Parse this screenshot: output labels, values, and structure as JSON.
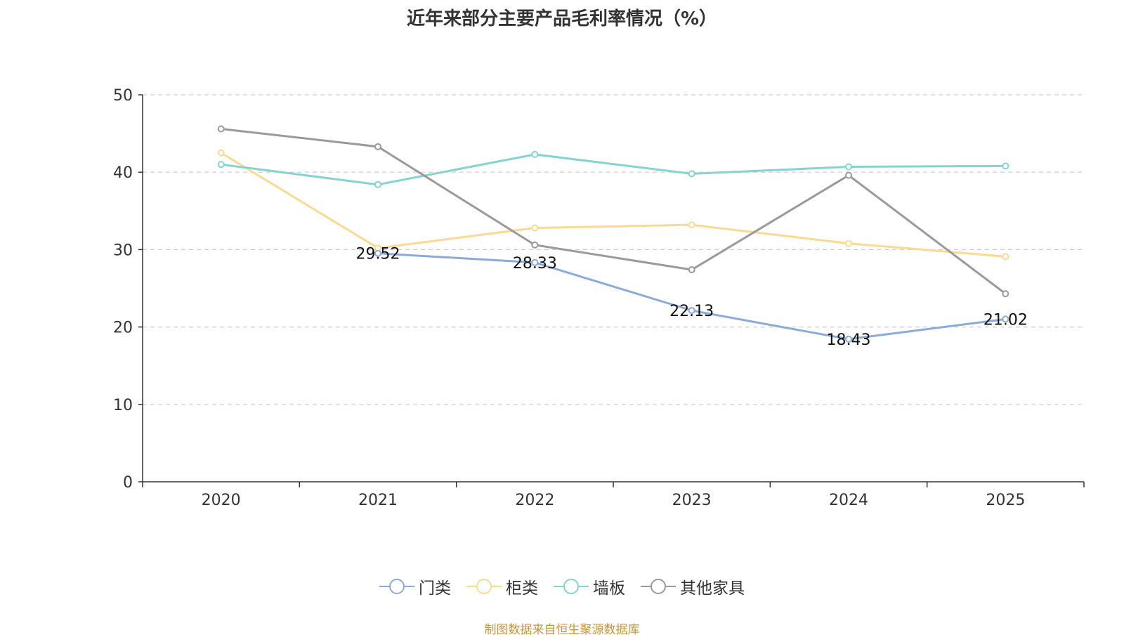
{
  "chart_data": {
    "type": "line",
    "title": "近年来部分主要产品毛利率情况（%）",
    "xlabel": "",
    "ylabel": "",
    "categories": [
      "2020",
      "2021",
      "2022",
      "2023",
      "2024",
      "2025"
    ],
    "ylim": [
      0,
      50
    ],
    "yticks": [
      0,
      10,
      20,
      30,
      40,
      50
    ],
    "grid": true,
    "legend_position": "bottom",
    "series": [
      {
        "name": "门类",
        "color": "#8caad8",
        "values": [
          null,
          29.52,
          28.33,
          22.13,
          18.43,
          21.02
        ],
        "labels": [
          null,
          "29.52",
          "28.33",
          "22.13",
          "18.43",
          "21.02"
        ]
      },
      {
        "name": "柜类",
        "color": "#fcd993",
        "values": [
          42.5,
          30.2,
          32.8,
          33.2,
          30.8,
          29.1
        ]
      },
      {
        "name": "墙板",
        "color": "#86d3d3",
        "values": [
          41.0,
          38.4,
          42.3,
          39.8,
          40.7,
          40.8
        ]
      },
      {
        "name": "其他家具",
        "color": "#9a9a9a",
        "values": [
          45.6,
          43.3,
          30.6,
          27.4,
          39.6,
          24.3
        ]
      }
    ]
  },
  "footer": {
    "source": "制图数据来自恒生聚源数据库"
  }
}
